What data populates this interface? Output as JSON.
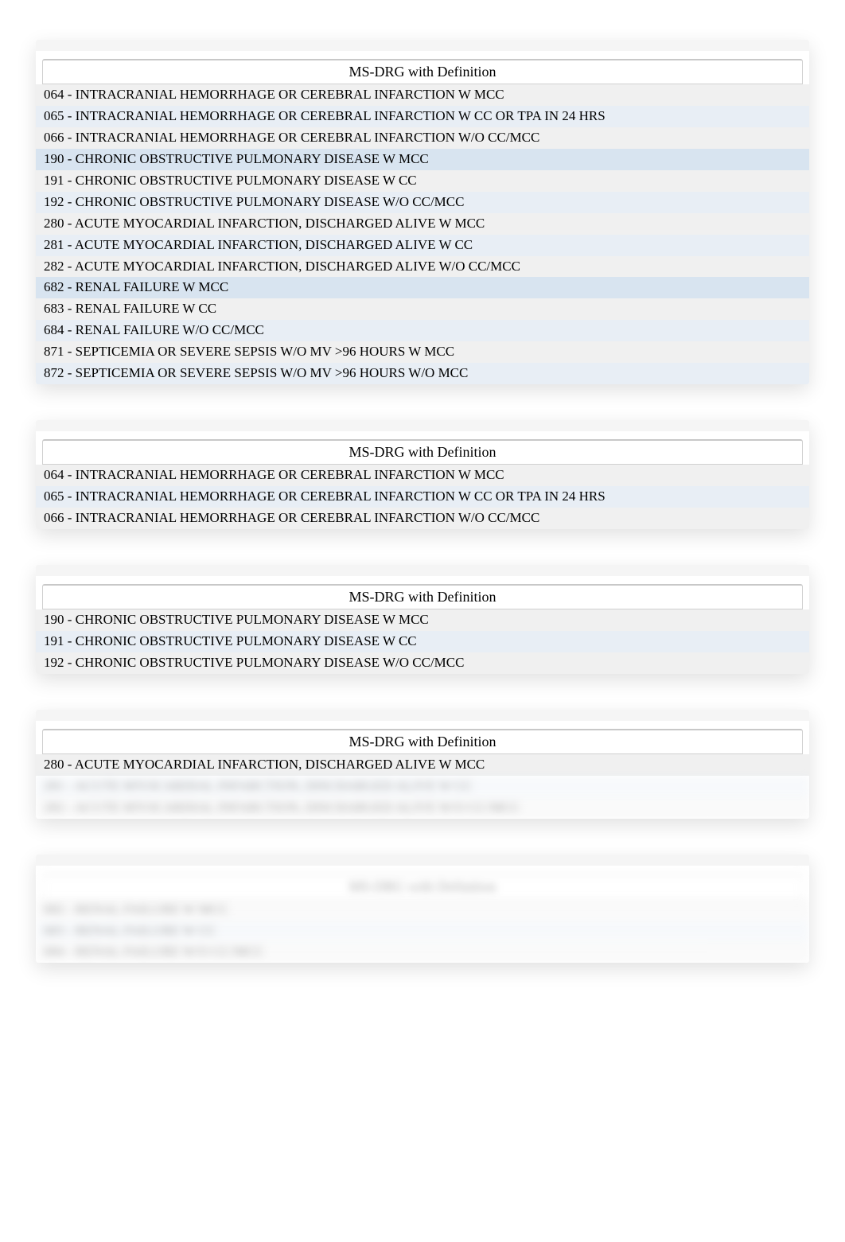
{
  "panels": [
    {
      "header": "MS-DRG with Definition",
      "rows": [
        "064 - INTRACRANIAL HEMORRHAGE OR CEREBRAL INFARCTION W MCC",
        "065 - INTRACRANIAL HEMORRHAGE OR CEREBRAL INFARCTION W CC OR TPA IN 24 HRS",
        "066 - INTRACRANIAL HEMORRHAGE OR CEREBRAL INFARCTION W/O CC/MCC",
        "190 - CHRONIC OBSTRUCTIVE PULMONARY DISEASE W MCC",
        "191 - CHRONIC OBSTRUCTIVE PULMONARY DISEASE W CC",
        "192 - CHRONIC OBSTRUCTIVE PULMONARY DISEASE W/O CC/MCC",
        "280 - ACUTE MYOCARDIAL INFARCTION, DISCHARGED ALIVE W MCC",
        "281 - ACUTE MYOCARDIAL INFARCTION, DISCHARGED ALIVE W CC",
        "282 - ACUTE MYOCARDIAL INFARCTION, DISCHARGED ALIVE W/O CC/MCC",
        "682 - RENAL FAILURE W MCC",
        "683 - RENAL FAILURE W CC",
        "684 - RENAL FAILURE W/O CC/MCC",
        "871 - SEPTICEMIA OR SEVERE SEPSIS W/O MV >96 HOURS W MCC",
        "872 - SEPTICEMIA OR SEVERE SEPSIS W/O MV >96 HOURS W/O MCC"
      ],
      "row_colors": [
        "#f0f0f0",
        "#e8eef5",
        "#f0f0f0",
        "#d8e4f0",
        "#f0f0f0",
        "#e8eef5",
        "#f0f0f0",
        "#e8eef5",
        "#f0f0f0",
        "#d8e4f0",
        "#f0f0f0",
        "#e8eef5",
        "#f0f0f0",
        "#e8eef5"
      ],
      "blurred_rows": []
    },
    {
      "header": "MS-DRG with Definition",
      "rows": [
        "064 - INTRACRANIAL HEMORRHAGE OR CEREBRAL INFARCTION W MCC",
        "065 - INTRACRANIAL HEMORRHAGE OR CEREBRAL INFARCTION W CC OR TPA IN 24 HRS",
        "066 - INTRACRANIAL HEMORRHAGE OR CEREBRAL INFARCTION W/O CC/MCC"
      ],
      "row_colors": [
        "#f0f0f0",
        "#e8eef5",
        "#f0f0f0"
      ],
      "blurred_rows": []
    },
    {
      "header": "MS-DRG with Definition",
      "rows": [
        "190 - CHRONIC OBSTRUCTIVE PULMONARY DISEASE W MCC",
        "191 - CHRONIC OBSTRUCTIVE PULMONARY DISEASE W CC",
        "192 - CHRONIC OBSTRUCTIVE PULMONARY DISEASE W/O CC/MCC"
      ],
      "row_colors": [
        "#f0f0f0",
        "#e8eef5",
        "#f0f0f0"
      ],
      "blurred_rows": []
    },
    {
      "header": "MS-DRG with Definition",
      "rows": [
        "280 - ACUTE MYOCARDIAL INFARCTION, DISCHARGED ALIVE W MCC",
        "281 - ACUTE MYOCARDIAL INFARCTION, DISCHARGED ALIVE W CC",
        "282 - ACUTE MYOCARDIAL INFARCTION, DISCHARGED ALIVE W/O CC/MCC"
      ],
      "row_colors": [
        "#f0f0f0",
        "#e8eef5",
        "#f0f0f0"
      ],
      "blurred_rows": [
        1,
        2
      ]
    },
    {
      "header": "MS-DRG with Definition",
      "rows": [
        "682 - RENAL FAILURE W MCC",
        "683 - RENAL FAILURE W CC",
        "684 - RENAL FAILURE W/O CC/MCC"
      ],
      "row_colors": [
        "#f0f0f0",
        "#e8eef5",
        "#f0f0f0"
      ],
      "blurred_rows": [
        0,
        1,
        2
      ],
      "blurred_header": true
    }
  ],
  "styling": {
    "body_bg": "#ffffff",
    "panel_shadow": "0 8px 25px rgba(0,0,0,0.12)",
    "header_border": "#d0d0d0",
    "font_family": "Times New Roman",
    "font_size_row": 17,
    "font_size_header": 18,
    "text_color": "#000000"
  }
}
